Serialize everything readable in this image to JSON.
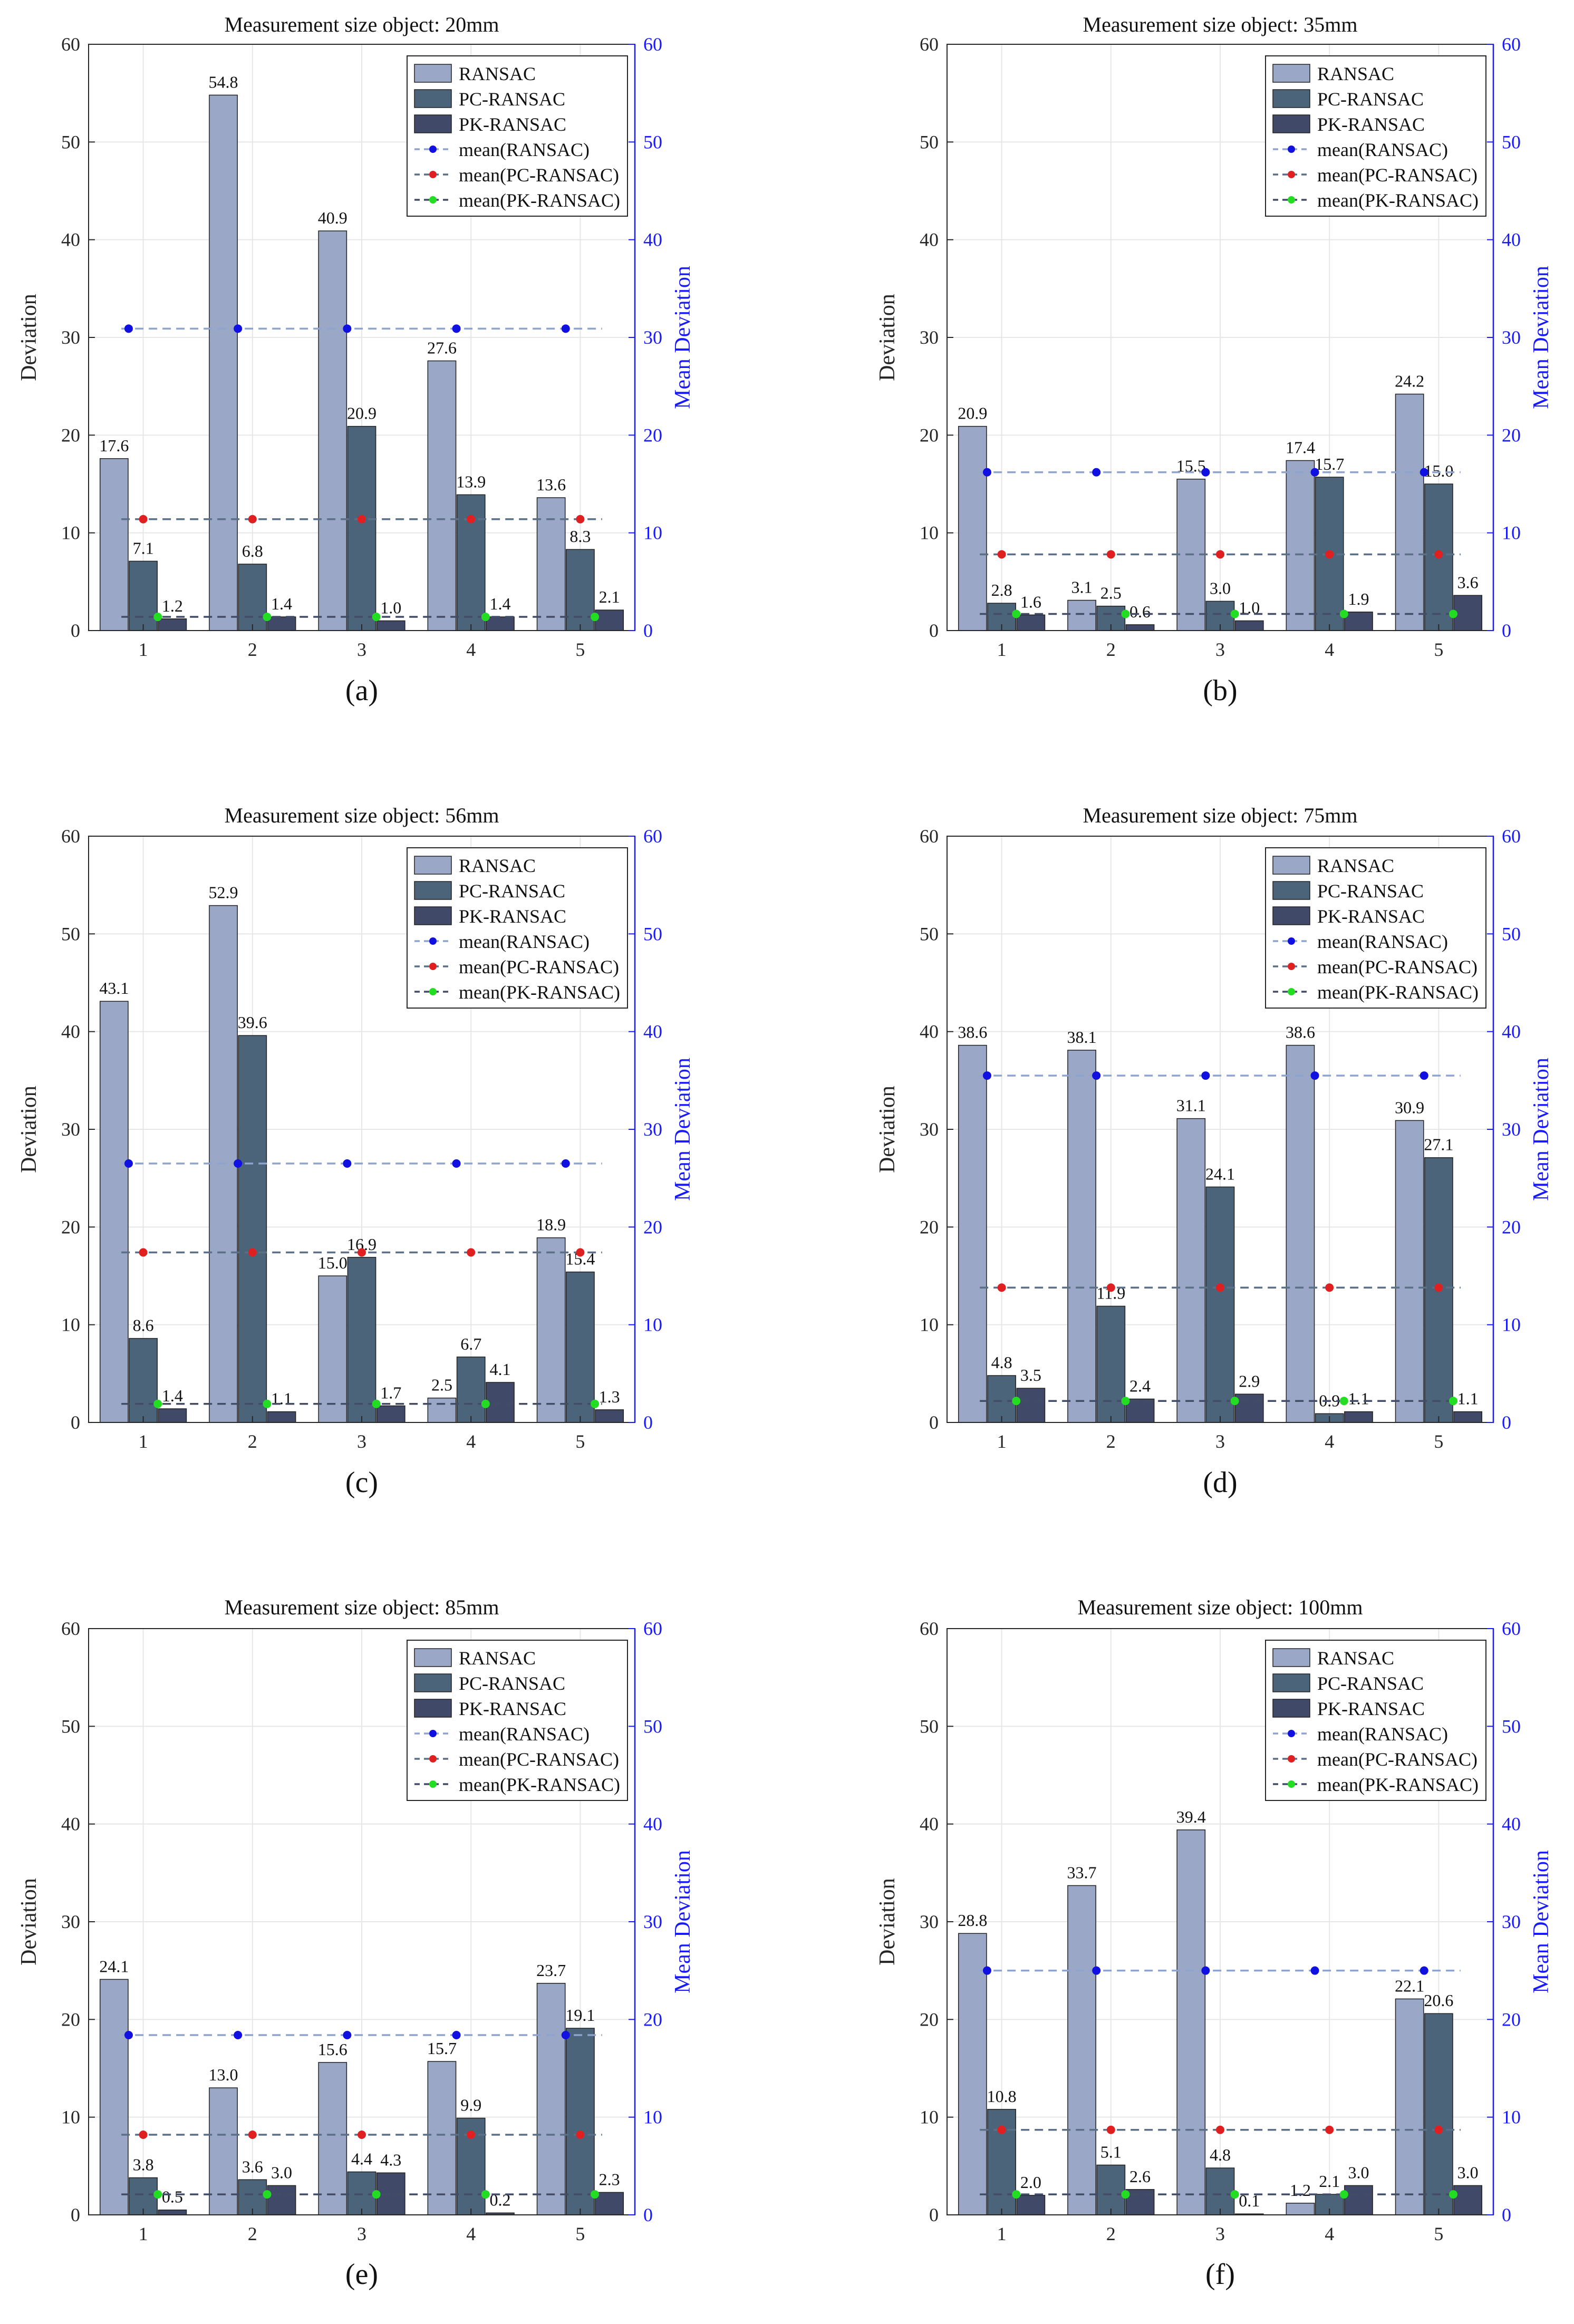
{
  "figure": {
    "series_names": [
      "RANSAC",
      "PC-RANSAC",
      "PK-RANSAC"
    ],
    "mean_legend_names": [
      "mean(RANSAC)",
      "mean(PC-RANSAC)",
      "mean(PK-RANSAC)"
    ],
    "colors": {
      "ransac_bar": "#9aa7c6",
      "pc_bar": "#4c6479",
      "pk_bar": "#404a68",
      "mean_ransac_line": "#8fa3cf",
      "mean_pc_line": "#5b6f86",
      "mean_pk_line": "#434c66",
      "mean_ransac_dot": "#1010e0",
      "mean_pc_dot": "#e02020",
      "mean_pk_dot": "#22dd22",
      "right_axis": "#1a1aff",
      "grid": "#e6e6e6"
    }
  },
  "chart_data": [
    {
      "type": "bar",
      "panel_label": "(a)",
      "title": "Measurement size object: 20mm",
      "xlabel": "",
      "ylabel": "Deviation",
      "ylabel_right": "Mean Deviation",
      "ylim": [
        0,
        60
      ],
      "yticks": [
        0,
        10,
        20,
        30,
        40,
        50,
        60
      ],
      "categories": [
        "1",
        "2",
        "3",
        "4",
        "5"
      ],
      "series": [
        {
          "name": "RANSAC",
          "values": [
            17.6,
            54.8,
            40.9,
            27.6,
            13.6
          ],
          "labels": [
            "17.6",
            "54.8",
            "40.9",
            "27.6",
            "13.6"
          ]
        },
        {
          "name": "PC-RANSAC",
          "values": [
            7.1,
            6.8,
            20.9,
            13.9,
            8.3
          ],
          "labels": [
            "7.1",
            "6.8",
            "20.9",
            "13.9",
            "8.3"
          ]
        },
        {
          "name": "PK-RANSAC",
          "values": [
            1.2,
            1.4,
            1.0,
            1.4,
            2.1
          ],
          "labels": [
            "1.2",
            "1.4",
            "1.0",
            "1.4",
            "2.1"
          ]
        }
      ],
      "means": [
        {
          "name": "mean(RANSAC)",
          "value": 30.9
        },
        {
          "name": "mean(PC-RANSAC)",
          "value": 11.4
        },
        {
          "name": "mean(PK-RANSAC)",
          "value": 1.4
        }
      ],
      "legend": "top-right"
    },
    {
      "type": "bar",
      "panel_label": "(b)",
      "title": "Measurement size object: 35mm",
      "xlabel": "",
      "ylabel": "Deviation",
      "ylabel_right": "Mean Deviation",
      "ylim": [
        0,
        60
      ],
      "yticks": [
        0,
        10,
        20,
        30,
        40,
        50,
        60
      ],
      "categories": [
        "1",
        "2",
        "3",
        "4",
        "5"
      ],
      "series": [
        {
          "name": "RANSAC",
          "values": [
            20.9,
            3.1,
            15.5,
            17.4,
            24.2
          ],
          "labels": [
            "20.9",
            "3.1",
            "15.5",
            "17.4",
            "24.2"
          ]
        },
        {
          "name": "PC-RANSAC",
          "values": [
            2.8,
            2.5,
            3.0,
            15.7,
            15.0
          ],
          "labels": [
            "2.8",
            "2.5",
            "3.0",
            "15.7",
            "15.0"
          ]
        },
        {
          "name": "PK-RANSAC",
          "values": [
            1.6,
            0.6,
            1.0,
            1.9,
            3.6
          ],
          "labels": [
            "1.6",
            "0.6",
            "1.0",
            "1.9",
            "3.6"
          ]
        }
      ],
      "means": [
        {
          "name": "mean(RANSAC)",
          "value": 16.2
        },
        {
          "name": "mean(PC-RANSAC)",
          "value": 7.8
        },
        {
          "name": "mean(PK-RANSAC)",
          "value": 1.7
        }
      ],
      "legend": "top-right"
    },
    {
      "type": "bar",
      "panel_label": "(c)",
      "title": "Measurement size object: 56mm",
      "xlabel": "",
      "ylabel": "Deviation",
      "ylabel_right": "Mean Deviation",
      "ylim": [
        0,
        60
      ],
      "yticks": [
        0,
        10,
        20,
        30,
        40,
        50,
        60
      ],
      "categories": [
        "1",
        "2",
        "3",
        "4",
        "5"
      ],
      "series": [
        {
          "name": "RANSAC",
          "values": [
            43.1,
            52.9,
            15.0,
            2.5,
            18.9
          ],
          "labels": [
            "43.1",
            "52.9",
            "15.0",
            "2.5",
            "18.9"
          ]
        },
        {
          "name": "PC-RANSAC",
          "values": [
            8.6,
            39.6,
            16.9,
            6.7,
            15.4
          ],
          "labels": [
            "8.6",
            "39.6",
            "16.9",
            "6.7",
            "15.4"
          ]
        },
        {
          "name": "PK-RANSAC",
          "values": [
            1.4,
            1.1,
            1.7,
            4.1,
            1.3
          ],
          "labels": [
            "1.4",
            "1.1",
            "1.7",
            "4.1",
            "1.3"
          ]
        }
      ],
      "means": [
        {
          "name": "mean(RANSAC)",
          "value": 26.5
        },
        {
          "name": "mean(PC-RANSAC)",
          "value": 17.4
        },
        {
          "name": "mean(PK-RANSAC)",
          "value": 1.9
        }
      ],
      "legend": "top-right"
    },
    {
      "type": "bar",
      "panel_label": "(d)",
      "title": "Measurement size object: 75mm",
      "xlabel": "",
      "ylabel": "Deviation",
      "ylabel_right": "Mean Deviation",
      "ylim": [
        0,
        60
      ],
      "yticks": [
        0,
        10,
        20,
        30,
        40,
        50,
        60
      ],
      "categories": [
        "1",
        "2",
        "3",
        "4",
        "5"
      ],
      "series": [
        {
          "name": "RANSAC",
          "values": [
            38.6,
            38.1,
            31.1,
            38.6,
            30.9
          ],
          "labels": [
            "38.6",
            "38.1",
            "31.1",
            "38.6",
            "30.9"
          ]
        },
        {
          "name": "PC-RANSAC",
          "values": [
            4.8,
            11.9,
            24.1,
            0.9,
            27.1
          ],
          "labels": [
            "4.8",
            "11.9",
            "24.1",
            "0.9",
            "27.1"
          ]
        },
        {
          "name": "PK-RANSAC",
          "values": [
            3.5,
            2.4,
            2.9,
            1.1,
            1.1
          ],
          "labels": [
            "3.5",
            "2.4",
            "2.9",
            "1.1",
            "1.1"
          ]
        }
      ],
      "means": [
        {
          "name": "mean(RANSAC)",
          "value": 35.5
        },
        {
          "name": "mean(PC-RANSAC)",
          "value": 13.8
        },
        {
          "name": "mean(PK-RANSAC)",
          "value": 2.2
        }
      ],
      "legend": "top-right"
    },
    {
      "type": "bar",
      "panel_label": "(e)",
      "title": "Measurement size object: 85mm",
      "xlabel": "",
      "ylabel": "Deviation",
      "ylabel_right": "Mean Deviation",
      "ylim": [
        0,
        60
      ],
      "yticks": [
        0,
        10,
        20,
        30,
        40,
        50,
        60
      ],
      "categories": [
        "1",
        "2",
        "3",
        "4",
        "5"
      ],
      "series": [
        {
          "name": "RANSAC",
          "values": [
            24.1,
            13.0,
            15.6,
            15.7,
            23.7
          ],
          "labels": [
            "24.1",
            "13.0",
            "15.6",
            "15.7",
            "23.7"
          ]
        },
        {
          "name": "PC-RANSAC",
          "values": [
            3.8,
            3.6,
            4.4,
            9.9,
            19.1
          ],
          "labels": [
            "3.8",
            "3.6",
            "4.4",
            "9.9",
            "19.1"
          ]
        },
        {
          "name": "PK-RANSAC",
          "values": [
            0.5,
            3.0,
            4.3,
            0.2,
            2.3
          ],
          "labels": [
            "0.5",
            "3.0",
            "4.3",
            "0.2",
            "2.3"
          ]
        }
      ],
      "means": [
        {
          "name": "mean(RANSAC)",
          "value": 18.4
        },
        {
          "name": "mean(PC-RANSAC)",
          "value": 8.2
        },
        {
          "name": "mean(PK-RANSAC)",
          "value": 2.1
        }
      ],
      "legend": "top-right"
    },
    {
      "type": "bar",
      "panel_label": "(f)",
      "title": "Measurement size object: 100mm",
      "xlabel": "",
      "ylabel": "Deviation",
      "ylabel_right": "Mean Deviation",
      "ylim": [
        0,
        60
      ],
      "yticks": [
        0,
        10,
        20,
        30,
        40,
        50,
        60
      ],
      "categories": [
        "1",
        "2",
        "3",
        "4",
        "5"
      ],
      "series": [
        {
          "name": "RANSAC",
          "values": [
            28.8,
            33.7,
            39.4,
            1.2,
            22.1
          ],
          "labels": [
            "28.8",
            "33.7",
            "39.4",
            "1.2",
            "22.1"
          ]
        },
        {
          "name": "PC-RANSAC",
          "values": [
            10.8,
            5.1,
            4.8,
            2.1,
            20.6
          ],
          "labels": [
            "10.8",
            "5.1",
            "4.8",
            "2.1",
            "20.6"
          ]
        },
        {
          "name": "PK-RANSAC",
          "values": [
            2.0,
            2.6,
            0.1,
            3.0,
            3.0
          ],
          "labels": [
            "2.0",
            "2.6",
            "0.1",
            "3.0",
            "3.0"
          ]
        }
      ],
      "means": [
        {
          "name": "mean(RANSAC)",
          "value": 25.0
        },
        {
          "name": "mean(PC-RANSAC)",
          "value": 8.7
        },
        {
          "name": "mean(PK-RANSAC)",
          "value": 2.1
        }
      ],
      "legend": "top-right"
    }
  ]
}
